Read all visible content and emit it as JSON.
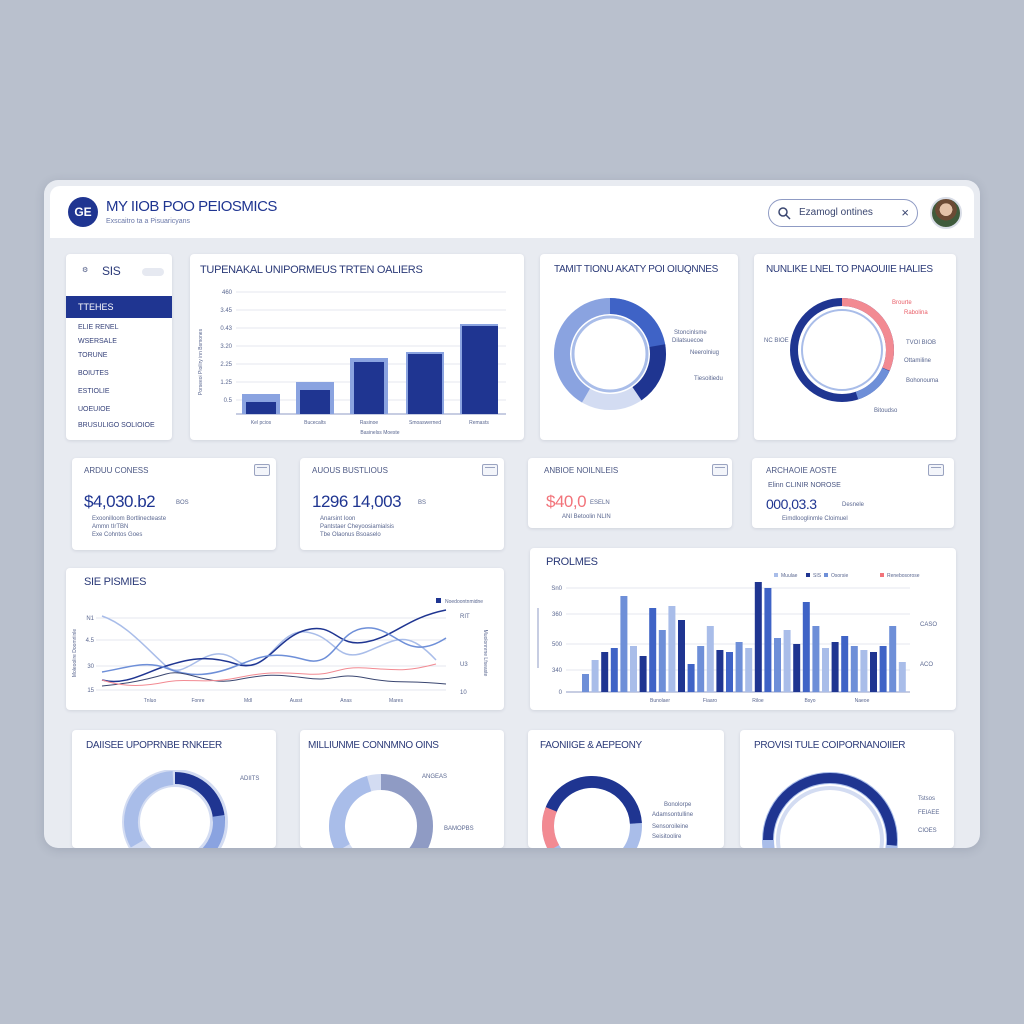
{
  "header": {
    "logo_text": "GE",
    "title": "MY IIOB POO PEIOSMICS",
    "subtitle": "Exscaitro ta a Pisuaricyans",
    "search_value": "Ezamogl ontines",
    "avatar": "user-avatar"
  },
  "sidebar": {
    "header_label": "SIS",
    "items": [
      {
        "label": "TTEHES",
        "active": true
      },
      {
        "label": "ELIE RENEL"
      },
      {
        "label": "WSERSALE"
      },
      {
        "label": "TORUNE"
      },
      {
        "label": "BOIUTES"
      },
      {
        "label": "ESTIOLIE"
      },
      {
        "label": "UOEUIOE"
      },
      {
        "label": "BRUSULIGO SOLIOIOE"
      }
    ]
  },
  "colors": {
    "navy": "#1f3591",
    "blue": "#3f63c6",
    "mid_blue": "#6e8fd8",
    "light_blue": "#a9bde9",
    "pale_blue": "#d3dcf2",
    "coral": "#f2737a"
  },
  "cards": {
    "bar_top": {
      "title": "TUPENAKAL UNIPORMEUS TRTEN OALIERS",
      "ylabel": "Porseeoi Pioiliry inn Bsmones",
      "xlabel": "Basinelss Moeste"
    },
    "donut1": {
      "title": "TAMIT TIONU AKATY POI OIUQNNES",
      "legend": [
        "Stoncinlsme",
        "Dilatsuecoe",
        "Neerolniug",
        "Tiesoitiedu"
      ]
    },
    "donut2": {
      "title": "NUNLIKE LNEL TO PNAOUIIE HALIES",
      "legend": [
        "Brourte",
        "Rabolina",
        "NC BIOE",
        "TVOI BIOB",
        "Ottamiline",
        "Bohonouma",
        "Bitoudso"
      ]
    }
  },
  "stats": [
    {
      "title": "ARDUU CONESS",
      "value": "$4,030.b2",
      "unit": "BOS",
      "lines": [
        "Exoonilloom Bortlinecteaste",
        "Ammn tIrTBN",
        "Exe Cohntos Goes"
      ]
    },
    {
      "title": "AUOUS BUSTLIOUS",
      "value": "1296 14,003",
      "unit": "BS",
      "lines": [
        "Anarsint Ioon",
        "Pantstaer Cheyoosiamialsis",
        "Tbe Olaonus Bsoaselo"
      ]
    },
    {
      "title": "ANBIOE NOILNLEIS",
      "value": "$40,0",
      "unit": "ESELN",
      "lines": [
        "ANI Betoolin NLIN"
      ]
    },
    {
      "title": "ARCHAOIE AOSTE",
      "value": "000,03.3",
      "unit": "Desnele",
      "lines": [
        "Elinn CLINIR NOROSE",
        "Eimdlooglinmle Cloimuel"
      ]
    }
  ],
  "line_chart": {
    "title": "SIE PISMIES",
    "ylabel": "Moleoolire Doomriinle",
    "legend": "Noedoontnmidne",
    "x_ticks": [
      "Tnluo",
      "Fonre",
      "Mdl",
      "Ausst",
      "Anas",
      "Mares"
    ],
    "y_ticks": [
      "15",
      "30",
      "4.5",
      "N1"
    ],
    "right_ticks": [
      "RIT",
      "U3",
      "10"
    ],
    "right_label": "Muolonnrne Lfseaste"
  },
  "bar_bottom": {
    "title": "PROLMES",
    "legend": [
      "Muulae",
      "SIS",
      "Osorsie",
      "Renebosorose"
    ],
    "y_ticks": [
      "Sn0",
      "360",
      "500",
      "340",
      "0"
    ],
    "right_ticks": [
      "CASO",
      "ACO"
    ],
    "x_ticks": [
      "Bunolaer",
      "Fiaaro",
      "Riloe",
      "Bsyo",
      "Naeoe"
    ]
  },
  "bottom_cards": [
    {
      "title": "DAIISEE UPOPRNBE RNKEER",
      "legend": [
        "ADIITS"
      ]
    },
    {
      "title": "MILLIUNME CONNMNO OINS",
      "legend": [
        "ANGEAS",
        "BAMOPBS"
      ]
    },
    {
      "title": "FAONIIGE & AEPEONY",
      "legend": [
        "Adamsontulline",
        "Sensoroileine",
        "Seisitoolire",
        "Bonolorpe"
      ]
    },
    {
      "title": "PROVISI TULE COIPORNANOIIER",
      "legend": [
        "Tstsos",
        "FEIAEE",
        "CIOES"
      ]
    }
  ]
}
